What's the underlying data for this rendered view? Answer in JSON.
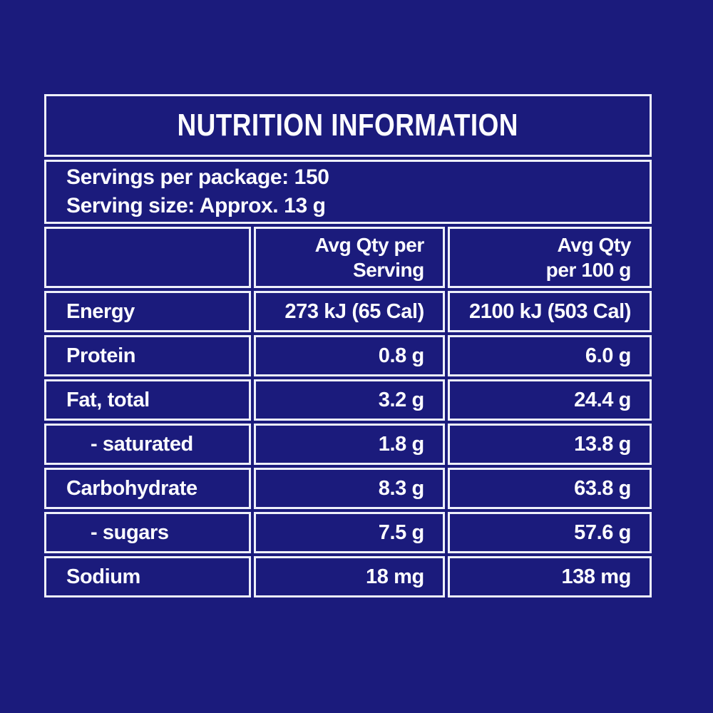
{
  "panel": {
    "title": "NUTRITION INFORMATION",
    "colors": {
      "background": "#1b1b7c",
      "border": "#eef0fa",
      "text": "#fcfcff"
    },
    "servings": {
      "per_package": "Servings per package: 150",
      "serving_size": "Serving size: Approx. 13 g"
    },
    "header": {
      "qty_serving_line1": "Avg Qty per",
      "qty_serving_line2": "Serving",
      "qty_100g_line1": "Avg Qty",
      "qty_100g_line2": "per 100 g"
    },
    "rows": [
      {
        "label": "Energy",
        "per_serving": "273 kJ (65 Cal)",
        "per_100g": "2100 kJ (503 Cal)",
        "indent": false
      },
      {
        "label": "Protein",
        "per_serving": "0.8 g",
        "per_100g": "6.0 g",
        "indent": false
      },
      {
        "label": "Fat, total",
        "per_serving": "3.2 g",
        "per_100g": "24.4 g",
        "indent": false
      },
      {
        "label": "- saturated",
        "per_serving": "1.8 g",
        "per_100g": "13.8 g",
        "indent": true
      },
      {
        "label": "Carbohydrate",
        "per_serving": "8.3 g",
        "per_100g": "63.8 g",
        "indent": false
      },
      {
        "label": "- sugars",
        "per_serving": "7.5 g",
        "per_100g": "57.6 g",
        "indent": true
      },
      {
        "label": "Sodium",
        "per_serving": "18 mg",
        "per_100g": "138 mg",
        "indent": false
      }
    ]
  }
}
